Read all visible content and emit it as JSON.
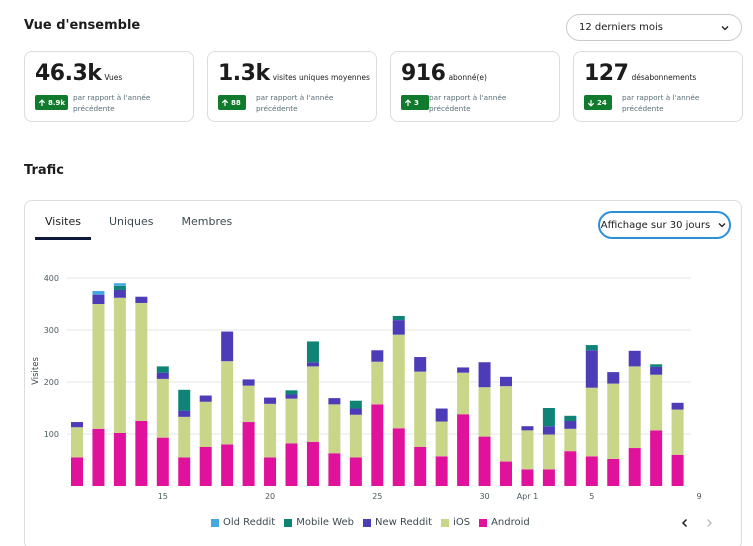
{
  "overview": {
    "title": "Vue d'ensemble",
    "range_select": {
      "label": "12 derniers mois",
      "icon": "chevron-down-icon"
    },
    "stats": [
      {
        "value": "46.3k",
        "label": "Vues",
        "delta": "8.9k",
        "direction": "up",
        "compare": "par rapport à l'année précédente"
      },
      {
        "value": "1.3k",
        "label": "visites uniques moyennes",
        "delta": "88",
        "direction": "up",
        "compare": "par rapport à l'année précédente"
      },
      {
        "value": "916",
        "label": "abonné(e)",
        "delta": "3",
        "direction": "up",
        "compare": "par rapport à l'année précédente"
      },
      {
        "value": "127",
        "label": "désabonnements",
        "delta": "24",
        "direction": "down",
        "compare": "par rapport à l'année précédente"
      }
    ]
  },
  "traffic": {
    "title": "Trafic",
    "tabs": [
      "Visites",
      "Uniques",
      "Membres"
    ],
    "active_tab": 0,
    "view_button": {
      "label": "Affichage sur 30 jours",
      "icon": "chevron-down-icon"
    },
    "pager": {
      "prev_icon": "chevron-left-icon",
      "next_icon": "chevron-right-icon"
    }
  },
  "colors": {
    "badge_green": "#107a2d",
    "Old Reddit": "#46a8e0",
    "Mobile Web": "#0e8376",
    "New Reddit": "#4d3cb8",
    "iOS": "#c9d68a",
    "Android": "#e0119a"
  },
  "chart_data": {
    "type": "bar",
    "stacked": true,
    "ylabel": "Visites",
    "ylim": [
      0,
      400
    ],
    "yticks": [
      100,
      200,
      300,
      400
    ],
    "grid": true,
    "legend_position": "bottom",
    "x": [
      "Mar 11",
      "Mar 12",
      "Mar 13",
      "Mar 14",
      "Mar 15",
      "Mar 16",
      "Mar 17",
      "Mar 18",
      "Mar 19",
      "Mar 20",
      "Mar 21",
      "Mar 22",
      "Mar 23",
      "Mar 24",
      "Mar 25",
      "Mar 26",
      "Mar 27",
      "Mar 28",
      "Mar 29",
      "Mar 30",
      "Mar 31",
      "Apr 1",
      "Apr 2",
      "Apr 3",
      "Apr 4",
      "Apr 5",
      "Apr 6",
      "Apr 7",
      "Apr 8",
      "Apr 9"
    ],
    "x_tick_labels": [
      {
        "index": 4,
        "label": "15"
      },
      {
        "index": 9,
        "label": "20"
      },
      {
        "index": 14,
        "label": "25"
      },
      {
        "index": 19,
        "label": "30"
      },
      {
        "index": 21,
        "label": "Apr 1"
      },
      {
        "index": 24,
        "label": "5"
      },
      {
        "index": 29,
        "label": "9"
      }
    ],
    "series": [
      {
        "name": "Android",
        "values": [
          55,
          110,
          102,
          125,
          93,
          55,
          75,
          80,
          123,
          55,
          82,
          85,
          63,
          55,
          157,
          111,
          75,
          57,
          138,
          95,
          47,
          32,
          32,
          67,
          57,
          52,
          73,
          107,
          60,
          0
        ]
      },
      {
        "name": "iOS",
        "values": [
          58,
          240,
          260,
          227,
          113,
          78,
          87,
          160,
          70,
          103,
          86,
          145,
          94,
          82,
          82,
          180,
          145,
          67,
          80,
          95,
          145,
          75,
          67,
          43,
          132,
          145,
          157,
          107,
          87,
          0
        ]
      },
      {
        "name": "New Reddit",
        "values": [
          10,
          18,
          15,
          12,
          12,
          12,
          12,
          57,
          12,
          12,
          8,
          8,
          12,
          12,
          22,
          28,
          28,
          25,
          10,
          48,
          18,
          8,
          16,
          15,
          72,
          22,
          30,
          15,
          13,
          0
        ]
      },
      {
        "name": "Mobile Web",
        "values": [
          0,
          0,
          8,
          0,
          12,
          40,
          0,
          0,
          0,
          0,
          8,
          40,
          0,
          15,
          0,
          8,
          0,
          0,
          0,
          0,
          0,
          0,
          35,
          10,
          10,
          0,
          0,
          5,
          0,
          0
        ]
      },
      {
        "name": "Old Reddit",
        "values": [
          0,
          7,
          5,
          0,
          0,
          0,
          0,
          0,
          0,
          0,
          0,
          0,
          0,
          0,
          0,
          0,
          0,
          0,
          0,
          0,
          0,
          0,
          0,
          0,
          0,
          0,
          0,
          0,
          0,
          0
        ]
      }
    ]
  }
}
